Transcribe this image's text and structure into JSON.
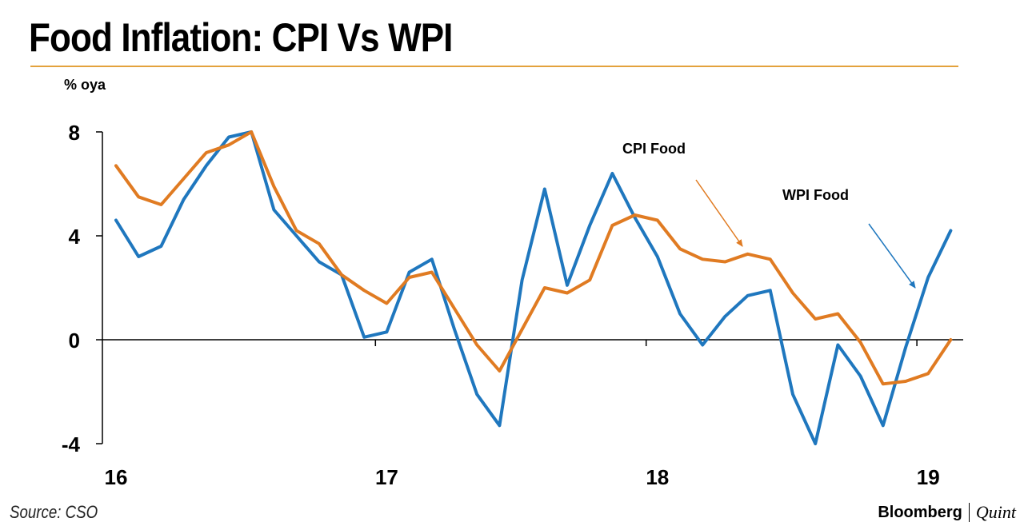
{
  "header": {
    "title": "Food Inflation: CPI Vs WPI"
  },
  "footer": {
    "source": "Source: CSO",
    "brand_primary": "Bloomberg",
    "brand_secondary": "Quint"
  },
  "colors": {
    "cpi": "#e07b22",
    "wpi": "#1f77be",
    "accent_rule": "#e3a23c"
  },
  "chart_data": {
    "type": "line",
    "title": "Food Inflation: CPI Vs WPI",
    "ylabel": "% oya",
    "xlabel": "",
    "ylim": [
      -4,
      8
    ],
    "yticks": [
      -4,
      0,
      4,
      8
    ],
    "ytick_labels": [
      "-4",
      "0",
      "4",
      "8"
    ],
    "xlim": [
      0,
      37.5
    ],
    "xticks": [
      11.5,
      23.5,
      35.5
    ],
    "xtick_labels": [
      "16",
      "17",
      "18",
      "19"
    ],
    "xtick_label_positions": [
      0,
      12,
      24,
      36
    ],
    "x": [
      0,
      1,
      2,
      3,
      4,
      5,
      6,
      7,
      8,
      9,
      10,
      11,
      12,
      13,
      14,
      15,
      16,
      17,
      18,
      19,
      20,
      21,
      22,
      23,
      24,
      25,
      26,
      27,
      28,
      29,
      30,
      31,
      32,
      33,
      34,
      35,
      36,
      37
    ],
    "series": [
      {
        "name": "CPI Food",
        "label": "CPI Food",
        "values": [
          6.7,
          5.5,
          5.2,
          6.2,
          7.2,
          7.5,
          8.0,
          5.9,
          4.2,
          3.7,
          2.5,
          1.9,
          1.4,
          2.4,
          2.6,
          1.2,
          -0.2,
          -1.2,
          0.4,
          2.0,
          1.8,
          2.3,
          4.4,
          4.8,
          4.6,
          3.5,
          3.1,
          3.0,
          3.3,
          3.1,
          1.8,
          0.8,
          1.0,
          -0.1,
          -1.7,
          -1.6,
          -1.3,
          0.0
        ]
      },
      {
        "name": "WPI Food",
        "label": "WPI Food",
        "values": [
          4.6,
          3.2,
          3.6,
          5.4,
          6.7,
          7.8,
          8.0,
          5.0,
          4.0,
          3.0,
          2.5,
          0.1,
          0.3,
          2.6,
          3.1,
          0.4,
          -2.1,
          -3.3,
          2.3,
          5.8,
          2.1,
          4.4,
          6.4,
          4.7,
          3.2,
          1.0,
          -0.2,
          0.9,
          1.7,
          1.9,
          -2.1,
          -4.0,
          -0.2,
          -1.4,
          -3.3,
          -0.3,
          2.4,
          4.2
        ]
      }
    ],
    "annotations": [
      {
        "text": "CPI Food",
        "series": "CPI Food"
      },
      {
        "text": "WPI Food",
        "series": "WPI Food"
      }
    ]
  }
}
